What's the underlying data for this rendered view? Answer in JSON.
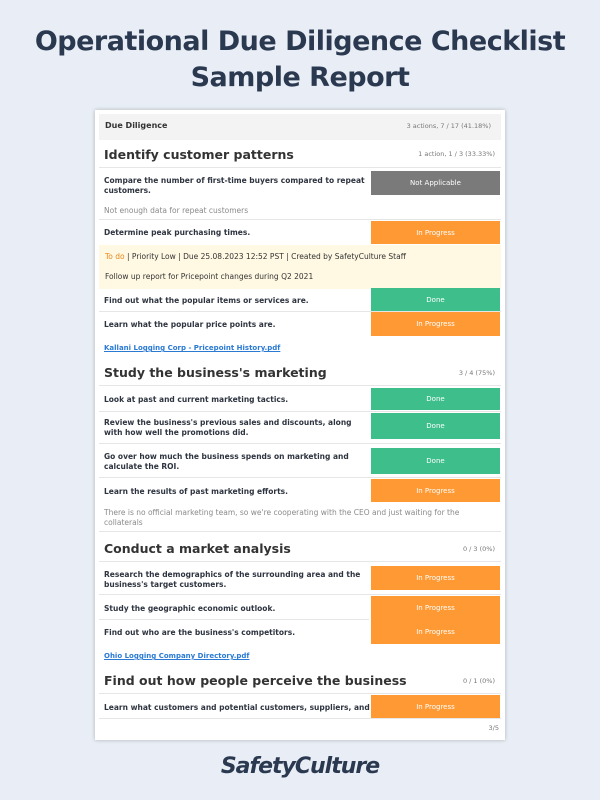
{
  "title": "Operational Due Diligence Checklist Sample Report",
  "header": {
    "label": "Due Diligence",
    "summary": "3 actions, 7 / 17 (41.18%)"
  },
  "sections": [
    {
      "title": "Identify customer patterns",
      "summary": "1 action, 1 / 3 (33.33%)"
    },
    {
      "title": "Study the business's marketing",
      "summary": "3 / 4 (75%)"
    },
    {
      "title": "Conduct a market analysis",
      "summary": "0 / 3 (0%)"
    },
    {
      "title": "Find out how people perceive the business",
      "summary": "0 / 1 (0%)"
    }
  ],
  "items": [
    {
      "q": "Compare the number of first-time buyers compared to repeat customers.",
      "status": "Not Applicable"
    },
    {
      "q": "Determine peak purchasing times.",
      "status": "In Progress"
    },
    {
      "q": "Find out what the popular items or services are.",
      "status": "Done"
    },
    {
      "q": "Learn what the popular price points are.",
      "status": "In Progress"
    },
    {
      "q": "Look at past and current marketing tactics.",
      "status": "Done"
    },
    {
      "q": "Review the business's previous sales and discounts, along with how well the promotions did.",
      "status": "Done"
    },
    {
      "q": "Go over how much the business spends on marketing and calculate the ROI.",
      "status": "Done"
    },
    {
      "q": "Learn the results of past marketing efforts.",
      "status": "In Progress"
    },
    {
      "q": "Research the demographics of the surrounding area and the business's target customers.",
      "status": "In Progress"
    },
    {
      "q": "Study the geographic economic outlook.",
      "status": "In Progress"
    },
    {
      "q": "Find out who are the business's competitors.",
      "status": "In Progress"
    },
    {
      "q": "Learn what customers and potential customers, suppliers, and",
      "status": "In Progress"
    }
  ],
  "notes": [
    "Not enough data for repeat customers",
    "There is no official marketing team, so we're cooperating with the CEO and just waiting for the collaterals"
  ],
  "action": {
    "status": "To do",
    "meta": " |  Priority Low  |  Due 25.08.2023 12:52 PST  |  Created by SafetyCulture Staff",
    "text": "Follow up report for Pricepoint changes during Q2 2021"
  },
  "links": [
    "Kallani Logging Corp - Pricepoint History.pdf",
    "Ohio Logging Company Directory.pdf"
  ],
  "page": "3/5",
  "logo": "SafetyCulture",
  "colors": {
    "in_progress": "#ff9933",
    "done": "#3dbe8b",
    "not_applicable": "#7a7a7a"
  }
}
